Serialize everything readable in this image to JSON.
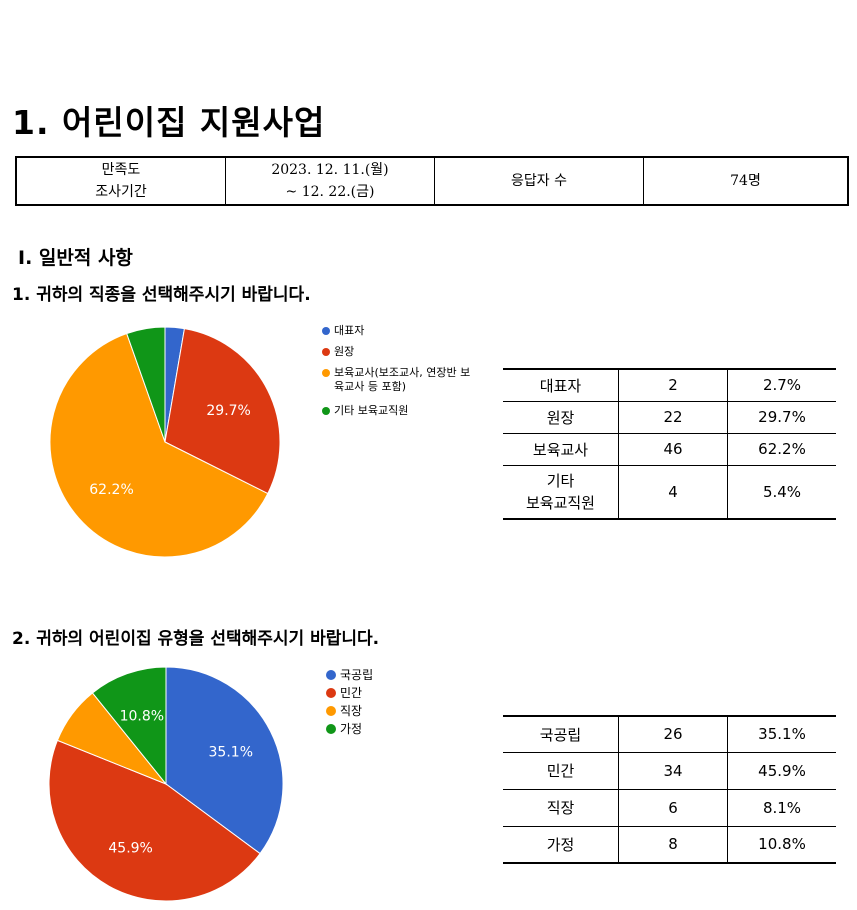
{
  "doc_title": "1. 어린이집 지원사업",
  "survey_info": {
    "period_label_line1": "만족도",
    "period_label_line2": "조사기간",
    "period_value_line1": "2023. 12. 11.(월)",
    "period_value_line2": "~ 12. 22.(금)",
    "respondents_label": "응답자 수",
    "respondents_value": "74명"
  },
  "section_title": "Ⅰ. 일반적 사항",
  "questions": [
    {
      "title": "1. 귀하의 직종을 선택해주시기 바랍니다.",
      "legend": [
        "대표자",
        "원장",
        "보육교사(보조교사, 연장반 보육교사 등 포함)",
        "기타 보육교직원"
      ],
      "table_rows": [
        {
          "label": [
            "대표자"
          ],
          "count": "2",
          "percent": "2.7%"
        },
        {
          "label": [
            "원장"
          ],
          "count": "22",
          "percent": "29.7%"
        },
        {
          "label": [
            "보육교사"
          ],
          "count": "46",
          "percent": "62.2%"
        },
        {
          "label": [
            "기타",
            "보육교직원"
          ],
          "count": "4",
          "percent": "5.4%"
        }
      ]
    },
    {
      "title": "2. 귀하의 어린이집 유형을 선택해주시기 바랍니다.",
      "legend": [
        "국공립",
        "민간",
        "직장",
        "가정"
      ],
      "table_rows": [
        {
          "label": [
            "국공립"
          ],
          "count": "26",
          "percent": "35.1%"
        },
        {
          "label": [
            "민간"
          ],
          "count": "34",
          "percent": "45.9%"
        },
        {
          "label": [
            "직장"
          ],
          "count": "6",
          "percent": "8.1%"
        },
        {
          "label": [
            "가정"
          ],
          "count": "8",
          "percent": "10.8%"
        }
      ]
    }
  ],
  "chart_data": [
    {
      "type": "pie",
      "categories": [
        "대표자",
        "원장",
        "보육교사(보조교사, 연장반 보육교사 등 포함)",
        "기타 보육교직원"
      ],
      "values": [
        2.7,
        29.7,
        62.2,
        5.4
      ],
      "slice_labels": [
        "",
        "29.7%",
        "62.2%",
        ""
      ],
      "colors": [
        "#3366cc",
        "#dc3912",
        "#ff9900",
        "#109618"
      ],
      "start_angle_deg": 90,
      "direction": "clockwise",
      "legend_position": "right"
    },
    {
      "type": "pie",
      "categories": [
        "국공립",
        "민간",
        "직장",
        "가정"
      ],
      "values": [
        35.1,
        45.9,
        8.1,
        10.8
      ],
      "slice_labels": [
        "35.1%",
        "45.9%",
        "",
        "10.8%"
      ],
      "colors": [
        "#3366cc",
        "#dc3912",
        "#ff9900",
        "#109618"
      ],
      "start_angle_deg": 90,
      "direction": "clockwise",
      "legend_position": "right"
    }
  ]
}
